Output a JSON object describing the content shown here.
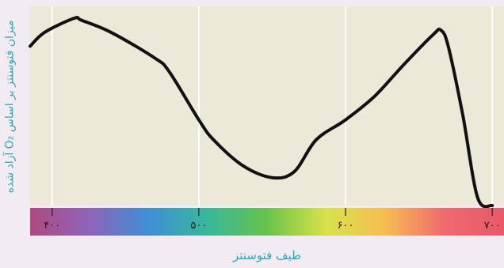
{
  "chart_data": {
    "type": "line",
    "title": "",
    "xlabel": "طیف فتوسنتز",
    "ylabel": "میزان فتوسنتز بر اساس O₂ آزاد شده",
    "xlim": [
      385,
      708
    ],
    "ylim": [
      0,
      100
    ],
    "xticks": [
      {
        "value": 400,
        "label": "۴۰۰"
      },
      {
        "value": 500,
        "label": "۵۰۰"
      },
      {
        "value": 600,
        "label": "۶۰۰"
      },
      {
        "value": 700,
        "label": "۷۰۰"
      }
    ],
    "grid": true,
    "legend": "none",
    "colors": {
      "plot_bg": "#ede9d8",
      "grid": "#ffffff",
      "line": "#111111",
      "spectrum": [
        "#b04a82",
        "#8e63b8",
        "#3f8fd6",
        "#38b89a",
        "#68c34b",
        "#d9e24a",
        "#f7bc52",
        "#f06a6e",
        "#e8586a"
      ]
    },
    "series": [
      {
        "values": [
          {
            "x": 385,
            "y": 80
          },
          {
            "x": 395,
            "y": 87
          },
          {
            "x": 415,
            "y": 94
          },
          {
            "x": 420,
            "y": 93
          },
          {
            "x": 440,
            "y": 87
          },
          {
            "x": 470,
            "y": 74
          },
          {
            "x": 480,
            "y": 67
          },
          {
            "x": 500,
            "y": 43
          },
          {
            "x": 510,
            "y": 33
          },
          {
            "x": 530,
            "y": 20
          },
          {
            "x": 550,
            "y": 14
          },
          {
            "x": 565,
            "y": 17
          },
          {
            "x": 580,
            "y": 33
          },
          {
            "x": 600,
            "y": 43
          },
          {
            "x": 620,
            "y": 55
          },
          {
            "x": 640,
            "y": 71
          },
          {
            "x": 660,
            "y": 86
          },
          {
            "x": 665,
            "y": 88
          },
          {
            "x": 670,
            "y": 80
          },
          {
            "x": 680,
            "y": 45
          },
          {
            "x": 690,
            "y": 4
          },
          {
            "x": 700,
            "y": 0
          }
        ]
      }
    ]
  }
}
